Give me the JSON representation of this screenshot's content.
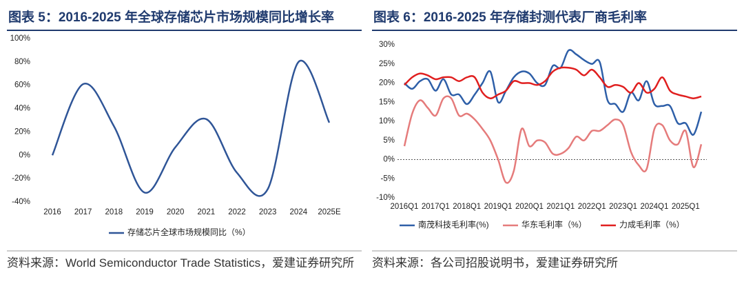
{
  "chart_data": [
    {
      "type": "line",
      "title": "图表 5：2016-2025 年全球存储芯片市场规模同比增长率",
      "source": "资料来源：World Semiconductor Trade Statistics，爱建证券研究所",
      "categories": [
        "2016",
        "2017",
        "2018",
        "2019",
        "2020",
        "2021",
        "2022",
        "2023",
        "2024",
        "2025E"
      ],
      "series": [
        {
          "name": "存储芯片全球市场规模同比（%）",
          "color": "#2f5597",
          "values": [
            0,
            61,
            25,
            -32,
            7,
            31,
            -15,
            -29,
            80,
            28
          ]
        }
      ],
      "ylim": [
        -40,
        100
      ],
      "yticks": [
        {
          "value": -40,
          "label": "-40%"
        },
        {
          "value": -20,
          "label": "-20%"
        },
        {
          "value": 0,
          "label": "0%"
        },
        {
          "value": 20,
          "label": "20%"
        },
        {
          "value": 40,
          "label": "40%"
        },
        {
          "value": 60,
          "label": "60%"
        },
        {
          "value": 80,
          "label": "80%"
        },
        {
          "value": 100,
          "label": "100%"
        }
      ]
    },
    {
      "type": "line",
      "title": "图表 6：2016-2025 年存储封测代表厂商毛利率",
      "source": "资料来源：各公司招股说明书，爱建证券研究所",
      "categories": [
        "2016Q1",
        null,
        null,
        null,
        "2017Q1",
        null,
        null,
        null,
        "2018Q1",
        null,
        null,
        null,
        "2019Q1",
        null,
        null,
        null,
        "2020Q1",
        null,
        null,
        null,
        "2021Q1",
        null,
        null,
        null,
        "2022Q1",
        null,
        null,
        null,
        "2023Q1",
        null,
        null,
        null,
        "2024Q1",
        null,
        null,
        null,
        "2025Q1",
        null,
        null
      ],
      "series": [
        {
          "name": "南茂科技毛利率(%)",
          "color": "#2e5fa8",
          "values": [
            20,
            18.5,
            20.5,
            21,
            18,
            21,
            17,
            17,
            14.5,
            17,
            20,
            23,
            15,
            18,
            21.5,
            23,
            22.5,
            20,
            19.5,
            24.5,
            24,
            28.5,
            27.5,
            26,
            25,
            25.5,
            15.5,
            14.5,
            12.5,
            17.5,
            15.5,
            20.5,
            14.5,
            14,
            14,
            9.5,
            9.5,
            6.5,
            12.5
          ]
        },
        {
          "name": "华东毛利率（%）",
          "color": "#e57b7b",
          "values": [
            3.5,
            12,
            15.5,
            13.5,
            11.5,
            16,
            16,
            11.5,
            12,
            10.5,
            8,
            5,
            0,
            -6,
            -3,
            8,
            3.5,
            5,
            4.5,
            1.5,
            1.5,
            3,
            6,
            5,
            7.5,
            7.5,
            9,
            10.5,
            9,
            2,
            -1.5,
            -2.5,
            8,
            9,
            5,
            4,
            7.5,
            -2,
            4
          ]
        },
        {
          "name": "力成毛利率（%）",
          "color": "#e01f1f",
          "values": [
            19.5,
            21.5,
            22.5,
            22,
            21,
            21.5,
            21.5,
            20.5,
            21.5,
            21.5,
            17.5,
            16,
            17,
            18,
            20.5,
            20,
            20,
            19.5,
            20.5,
            23,
            24,
            24,
            23.5,
            22,
            23.5,
            21.5,
            19,
            19.5,
            19,
            17.5,
            20,
            17.5,
            18.5,
            21.5,
            18,
            17,
            16.5,
            16,
            16.5
          ]
        }
      ],
      "ylim": [
        -10,
        30
      ],
      "yticks": [
        {
          "value": -10,
          "label": "-10%"
        },
        {
          "value": -5,
          "label": "-5%"
        },
        {
          "value": 0,
          "label": "0%"
        },
        {
          "value": 5,
          "label": "5%"
        },
        {
          "value": 10,
          "label": "10%"
        },
        {
          "value": 15,
          "label": "15%"
        },
        {
          "value": 20,
          "label": "20%"
        },
        {
          "value": 25,
          "label": "25%"
        },
        {
          "value": 30,
          "label": "30%"
        }
      ]
    }
  ]
}
